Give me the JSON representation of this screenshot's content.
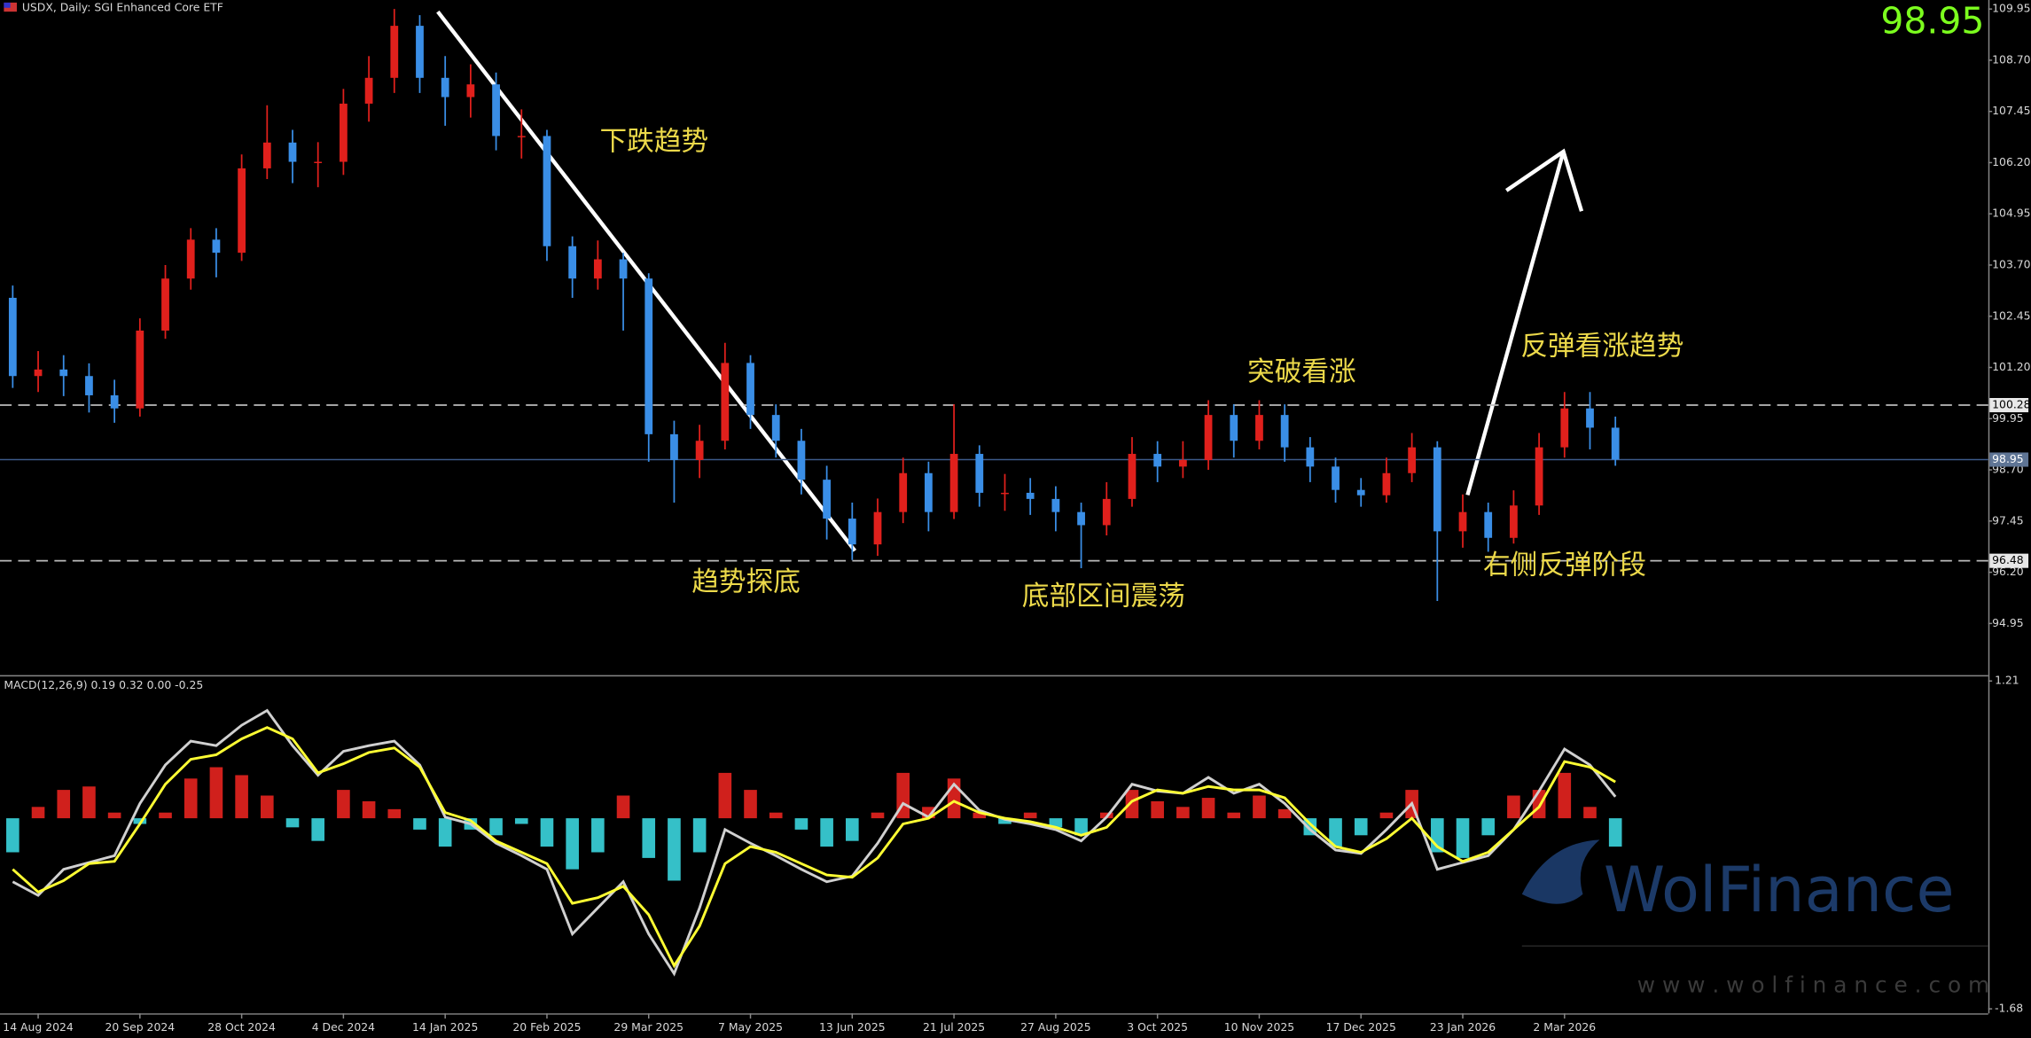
{
  "chart_data": [
    {
      "type": "candlestick",
      "title": "USDX, Daily:  SGI Enhanced Core ETF",
      "categories": [
        null,
        "14 Aug 2024",
        null,
        null,
        null,
        "20 Sep 2024",
        null,
        null,
        null,
        "28 Oct 2024",
        null,
        null,
        null,
        "4 Dec 2024",
        null,
        null,
        null,
        "14 Jan 2025",
        null,
        null,
        null,
        "20 Feb 2025",
        null,
        null,
        null,
        "29 Mar 2025",
        null,
        null,
        null,
        "7 May 2025",
        null,
        null,
        null,
        "13 Jun 2025",
        null,
        null,
        null,
        "21 Jul 2025",
        null,
        null,
        null,
        "27 Aug 2025",
        null,
        null,
        null,
        "3 Oct 2025",
        null,
        null,
        null,
        "10 Nov 2025",
        null,
        null,
        null,
        "17 Dec 2025",
        null,
        null,
        null,
        "23 Jan 2026",
        null,
        null,
        null,
        "2 Mar 2026",
        null,
        null
      ],
      "open": [
        102.9,
        100.99,
        101.15,
        100.99,
        100.52,
        100.2,
        102.1,
        103.37,
        104.32,
        104.0,
        106.06,
        106.69,
        106.22,
        106.22,
        107.64,
        108.27,
        109.54,
        108.27,
        107.8,
        108.11,
        106.85,
        106.85,
        104.16,
        103.37,
        103.84,
        103.37,
        99.57,
        98.94,
        99.41,
        101.31,
        100.04,
        99.41,
        98.46,
        97.51,
        96.88,
        97.67,
        98.62,
        97.67,
        99.09,
        98.14,
        98.14,
        97.99,
        97.67,
        97.35,
        97.99,
        99.09,
        98.78,
        98.94,
        100.04,
        99.41,
        100.04,
        99.25,
        98.78,
        98.21,
        98.08,
        98.62,
        99.25,
        97.2,
        97.67,
        97.04,
        97.83,
        99.25,
        100.2,
        99.73
      ],
      "high": [
        103.2,
        101.6,
        101.5,
        101.3,
        100.9,
        102.4,
        103.7,
        104.6,
        104.6,
        106.4,
        107.6,
        107.0,
        106.7,
        108.0,
        108.8,
        109.95,
        109.8,
        108.8,
        108.6,
        108.4,
        107.5,
        107.0,
        104.4,
        104.3,
        104.0,
        103.5,
        99.9,
        99.8,
        101.8,
        101.5,
        100.3,
        99.7,
        98.8,
        97.9,
        98.0,
        99.0,
        98.9,
        100.3,
        99.3,
        98.6,
        98.5,
        98.3,
        97.9,
        98.4,
        99.5,
        99.4,
        99.4,
        100.4,
        100.3,
        100.4,
        100.3,
        99.5,
        99.0,
        98.5,
        99.0,
        99.6,
        99.4,
        98.1,
        97.9,
        98.2,
        99.6,
        100.6,
        100.6,
        100.0
      ],
      "low": [
        100.7,
        100.6,
        100.5,
        100.1,
        99.85,
        100.0,
        101.9,
        103.1,
        103.4,
        103.8,
        105.8,
        105.7,
        105.6,
        105.9,
        107.2,
        107.9,
        107.9,
        107.1,
        107.3,
        106.5,
        106.3,
        103.8,
        102.9,
        103.1,
        102.1,
        98.9,
        97.9,
        98.5,
        99.2,
        99.7,
        99.0,
        98.1,
        97.0,
        96.5,
        96.6,
        97.4,
        97.2,
        97.5,
        97.8,
        97.7,
        97.6,
        97.2,
        96.3,
        97.1,
        97.8,
        98.4,
        98.5,
        98.7,
        99.0,
        99.2,
        98.9,
        98.4,
        97.9,
        97.8,
        97.9,
        98.4,
        95.5,
        96.8,
        96.7,
        96.9,
        97.6,
        99.0,
        99.2,
        98.8
      ],
      "close": [
        100.99,
        101.15,
        100.99,
        100.52,
        100.2,
        102.1,
        103.37,
        104.32,
        104.0,
        106.06,
        106.69,
        106.22,
        106.22,
        107.64,
        108.27,
        109.54,
        108.27,
        107.8,
        108.11,
        106.85,
        106.85,
        104.16,
        103.37,
        103.84,
        103.37,
        99.57,
        98.94,
        99.41,
        101.31,
        100.04,
        99.41,
        98.46,
        97.51,
        96.88,
        97.67,
        98.62,
        97.67,
        99.09,
        98.14,
        98.14,
        97.99,
        97.67,
        97.35,
        97.99,
        99.09,
        98.78,
        98.94,
        100.04,
        99.41,
        100.04,
        99.25,
        98.78,
        98.21,
        98.08,
        98.62,
        99.25,
        97.2,
        97.67,
        97.04,
        97.83,
        99.25,
        100.2,
        99.73,
        98.95
      ],
      "up_color": "#e0201c",
      "down_color": "#3a8ee6",
      "ylim": [
        93.72,
        110.17
      ],
      "yticks": [
        94.95,
        {
          "value": 96.2,
          "label": "96.20"
        },
        97.45,
        {
          "value": 98.7,
          "label": "98.70"
        },
        99.95,
        {
          "value": 101.2,
          "label": "101.20"
        },
        102.45,
        {
          "value": 103.7,
          "label": "103.70"
        },
        104.95,
        {
          "value": 106.2,
          "label": "106.20"
        },
        107.45,
        {
          "value": 108.7,
          "label": "108.70"
        },
        109.95
      ],
      "grid": false,
      "levels": [
        100.28,
        96.48
      ],
      "level_style": "dashed",
      "current_price": 98.95,
      "annotations": [
        "下跌趋势",
        "突破看涨",
        "反弹看涨趋势",
        "趋势探底",
        "底部区间震荡",
        "右侧反弹阶段"
      ]
    },
    {
      "type": "macd",
      "title": "MACD(12,26,9) 0.19 0.32 0.00 -0.25",
      "ylim": [
        -1.72,
        1.25
      ],
      "yticks": [
        -1.68,
        1.21
      ],
      "histogram": {
        "up_color": "#d0201c",
        "down_color": "#35c0c8",
        "values": [
          -0.3,
          0.1,
          0.25,
          0.28,
          0.05,
          -0.05,
          0.05,
          0.35,
          0.45,
          0.38,
          0.2,
          -0.08,
          -0.2,
          0.25,
          0.15,
          0.08,
          -0.1,
          -0.25,
          -0.1,
          -0.15,
          -0.05,
          -0.25,
          -0.45,
          -0.3,
          0.2,
          -0.35,
          -0.55,
          -0.3,
          0.4,
          0.25,
          0.05,
          -0.1,
          -0.25,
          -0.2,
          0.05,
          0.4,
          0.1,
          0.35,
          0.05,
          -0.05,
          0.05,
          -0.08,
          -0.15,
          0.05,
          0.25,
          0.15,
          0.1,
          0.18,
          0.05,
          0.2,
          0.08,
          -0.15,
          -0.25,
          -0.15,
          0.05,
          0.25,
          -0.3,
          -0.35,
          -0.15,
          0.2,
          0.25,
          0.4,
          0.1,
          -0.25
        ]
      },
      "series": [
        {
          "color": "#d0d0d0",
          "values": [
            -0.56,
            -0.68,
            -0.45,
            -0.39,
            -0.33,
            0.13,
            0.47,
            0.68,
            0.64,
            0.82,
            0.95,
            0.64,
            0.38,
            0.59,
            0.64,
            0.68,
            0.47,
            0.01,
            -0.05,
            -0.22,
            -0.33,
            -0.45,
            -1.02,
            -0.79,
            -0.56,
            -1.02,
            -1.37,
            -0.79,
            -0.1,
            -0.22,
            -0.33,
            -0.45,
            -0.56,
            -0.51,
            -0.22,
            0.13,
            0.01,
            0.3,
            0.07,
            -0.01,
            -0.05,
            -0.1,
            -0.2,
            0.01,
            0.3,
            0.24,
            0.22,
            0.36,
            0.22,
            0.3,
            0.13,
            -0.1,
            -0.28,
            -0.31,
            -0.1,
            0.13,
            -0.45,
            -0.39,
            -0.33,
            -0.1,
            0.24,
            0.61,
            0.47,
            0.19
          ]
        },
        {
          "color": "#ffff33",
          "values": [
            -0.45,
            -0.65,
            -0.55,
            -0.4,
            -0.38,
            -0.05,
            0.3,
            0.52,
            0.56,
            0.7,
            0.8,
            0.7,
            0.4,
            0.48,
            0.58,
            0.62,
            0.45,
            0.05,
            -0.02,
            -0.2,
            -0.3,
            -0.4,
            -0.75,
            -0.7,
            -0.6,
            -0.85,
            -1.3,
            -0.95,
            -0.4,
            -0.25,
            -0.3,
            -0.4,
            -0.5,
            -0.52,
            -0.35,
            -0.05,
            0.0,
            0.15,
            0.05,
            0.0,
            -0.03,
            -0.08,
            -0.15,
            -0.08,
            0.15,
            0.25,
            0.22,
            0.28,
            0.25,
            0.25,
            0.18,
            -0.05,
            -0.25,
            -0.3,
            -0.18,
            0.0,
            -0.25,
            -0.38,
            -0.3,
            -0.1,
            0.1,
            0.5,
            0.45,
            0.32
          ]
        }
      ]
    }
  ],
  "watermark": {
    "brand": "WolFinance",
    "url": "w w w . w o l f i n a n c e . c o m"
  }
}
